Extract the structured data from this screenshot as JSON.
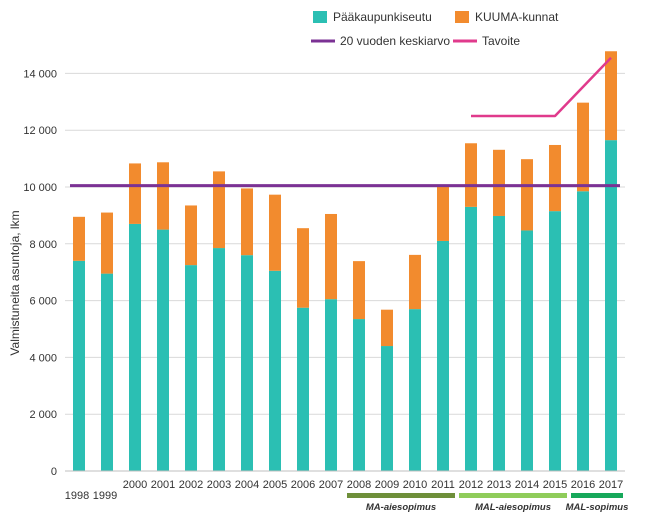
{
  "chart_data": {
    "type": "bar",
    "stacked": true,
    "ylabel": "Valmistuneita asuntoja, lkm",
    "ylim": [
      0,
      15000
    ],
    "yticks": [
      0,
      2000,
      4000,
      6000,
      8000,
      10000,
      12000,
      14000
    ],
    "ytick_labels": [
      "0",
      "2 000",
      "4 000",
      "6 000",
      "8 000",
      "10 000",
      "12 000",
      "14 000"
    ],
    "categories": [
      "1998",
      "1999",
      "2000",
      "2001",
      "2002",
      "2003",
      "2004",
      "2005",
      "2006",
      "2007",
      "2008",
      "2009",
      "2010",
      "2011",
      "2012",
      "2013",
      "2014",
      "2015",
      "2016",
      "2017"
    ],
    "series": [
      {
        "name": "Pääkaupunkiseutu",
        "color": "#2bbfb3",
        "values": [
          7400,
          6950,
          8700,
          8500,
          7250,
          7850,
          7600,
          7050,
          5750,
          6050,
          5350,
          4400,
          5700,
          8100,
          9300,
          8980,
          8470,
          9150,
          9850,
          11650
        ]
      },
      {
        "name": "KUUMA-kunnat",
        "color": "#f28b2e",
        "values": [
          1550,
          2150,
          2130,
          2370,
          2100,
          2700,
          2350,
          2680,
          2800,
          3000,
          2040,
          1280,
          1910,
          1910,
          2240,
          2330,
          2510,
          2330,
          3120,
          3130
        ]
      }
    ],
    "lines": [
      {
        "name": "20 vuoden keskiarvo",
        "color": "#7b3294",
        "x": [
          "1998",
          "2017"
        ],
        "values": [
          10050,
          10050
        ]
      },
      {
        "name": "Tavoite",
        "color": "#e03a8c",
        "x": [
          "2012",
          "2015",
          "2017"
        ],
        "values": [
          12500,
          12500,
          14550
        ]
      }
    ],
    "legend": [
      {
        "name": "Pääkaupunkiseutu",
        "kind": "box",
        "color": "#2bbfb3"
      },
      {
        "name": "KUUMA-kunnat",
        "kind": "box",
        "color": "#f28b2e"
      },
      {
        "name": "20 vuoden keskiarvo",
        "kind": "line",
        "color": "#7b3294"
      },
      {
        "name": "Tavoite",
        "kind": "line",
        "color": "#e03a8c"
      }
    ],
    "agreements": [
      {
        "label": "MA-aiesopimus",
        "from": "2008",
        "to": "2011",
        "color": "#6e8f3a"
      },
      {
        "label": "MAL-aiesopimus",
        "from": "2012",
        "to": "2015",
        "color": "#8fcc5a"
      },
      {
        "label": "MAL-sopimus",
        "from": "2016",
        "to": "2017",
        "color": "#16a85a"
      }
    ]
  }
}
